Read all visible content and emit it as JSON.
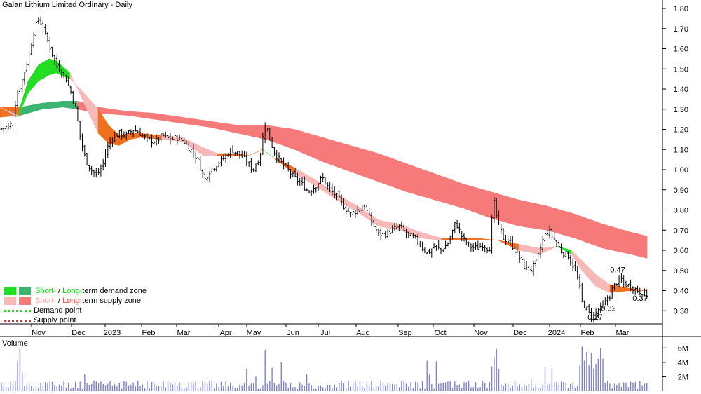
{
  "title": "Galan Lithium Limited Ordinary - Daily",
  "volume_panel_label": "Volume",
  "legend": {
    "zone_demand": {
      "short": "Short-",
      "sep": " / ",
      "long": "Long-",
      "rest": "term demand zone"
    },
    "zone_supply": {
      "short": "Short-",
      "sep": " / ",
      "long": "Long-",
      "rest": "term supply zone"
    },
    "demand_point": "Demand point",
    "supply_point": "Supply point"
  },
  "colors": {
    "short_demand": "#22dd22",
    "long_demand": "#3cb371",
    "short_supply": "#f7b8b8",
    "long_supply": "#f77a7a",
    "transition": "#f07020",
    "candle": "#000000",
    "volume": "#8080cc"
  },
  "chart_data": {
    "type": "candlestick",
    "title": "Galan Lithium Limited Ordinary - Daily",
    "x_tick_labels": [
      "Nov",
      "Dec",
      "2023",
      "Feb",
      "Mar",
      "Apr",
      "May",
      "Jun",
      "Jul",
      "Aug",
      "Sep",
      "Oct",
      "Nov",
      "Dec",
      "2024",
      "Feb",
      "Mar"
    ],
    "y_ticks": [
      "1.80",
      "1.70",
      "1.60",
      "1.50",
      "1.40",
      "1.30",
      "1.20",
      "1.10",
      "1.00",
      "0.90",
      "0.80",
      "0.70",
      "0.60",
      "0.50",
      "0.40",
      "0.30"
    ],
    "ylim": [
      0.27,
      1.83
    ],
    "volume_ticks": [
      "6M",
      "4M",
      "2M"
    ],
    "annotations": [
      "0.27",
      "0.32",
      "0.47",
      "0.37"
    ],
    "close_path": [
      [
        0,
        1.2
      ],
      [
        15,
        1.22
      ],
      [
        25,
        1.38
      ],
      [
        32,
        1.45
      ],
      [
        40,
        1.55
      ],
      [
        48,
        1.68
      ],
      [
        55,
        1.75
      ],
      [
        62,
        1.7
      ],
      [
        70,
        1.62
      ],
      [
        80,
        1.52
      ],
      [
        90,
        1.48
      ],
      [
        100,
        1.4
      ],
      [
        108,
        1.3
      ],
      [
        115,
        1.15
      ],
      [
        122,
        1.05
      ],
      [
        130,
        1.0
      ],
      [
        138,
        0.97
      ],
      [
        146,
        1.02
      ],
      [
        152,
        1.1
      ],
      [
        160,
        1.16
      ],
      [
        170,
        1.18
      ],
      [
        180,
        1.17
      ],
      [
        190,
        1.2
      ],
      [
        200,
        1.18
      ],
      [
        210,
        1.15
      ],
      [
        222,
        1.14
      ],
      [
        232,
        1.17
      ],
      [
        242,
        1.15
      ],
      [
        252,
        1.16
      ],
      [
        262,
        1.14
      ],
      [
        272,
        1.1
      ],
      [
        282,
        1.05
      ],
      [
        292,
        0.95
      ],
      [
        300,
        1.0
      ],
      [
        310,
        1.03
      ],
      [
        320,
        1.06
      ],
      [
        330,
        1.1
      ],
      [
        340,
        1.08
      ],
      [
        350,
        1.05
      ],
      [
        360,
        1.0
      ],
      [
        370,
        1.05
      ],
      [
        378,
        1.23
      ],
      [
        385,
        1.15
      ],
      [
        392,
        1.08
      ],
      [
        400,
        1.04
      ],
      [
        410,
        1.0
      ],
      [
        420,
        0.96
      ],
      [
        430,
        0.93
      ],
      [
        440,
        0.89
      ],
      [
        450,
        0.92
      ],
      [
        460,
        0.96
      ],
      [
        470,
        0.9
      ],
      [
        480,
        0.87
      ],
      [
        490,
        0.82
      ],
      [
        500,
        0.78
      ],
      [
        510,
        0.8
      ],
      [
        520,
        0.82
      ],
      [
        530,
        0.74
      ],
      [
        540,
        0.68
      ],
      [
        550,
        0.68
      ],
      [
        560,
        0.7
      ],
      [
        570,
        0.72
      ],
      [
        580,
        0.68
      ],
      [
        590,
        0.66
      ],
      [
        600,
        0.63
      ],
      [
        610,
        0.58
      ],
      [
        620,
        0.62
      ],
      [
        630,
        0.6
      ],
      [
        640,
        0.64
      ],
      [
        650,
        0.74
      ],
      [
        660,
        0.66
      ],
      [
        670,
        0.62
      ],
      [
        680,
        0.61
      ],
      [
        690,
        0.63
      ],
      [
        698,
        0.6
      ],
      [
        704,
        0.85
      ],
      [
        710,
        0.74
      ],
      [
        718,
        0.66
      ],
      [
        728,
        0.64
      ],
      [
        738,
        0.58
      ],
      [
        748,
        0.52
      ],
      [
        756,
        0.5
      ],
      [
        765,
        0.54
      ],
      [
        775,
        0.66
      ],
      [
        782,
        0.7
      ],
      [
        790,
        0.66
      ],
      [
        800,
        0.6
      ],
      [
        810,
        0.57
      ],
      [
        818,
        0.52
      ],
      [
        825,
        0.45
      ],
      [
        830,
        0.35
      ],
      [
        838,
        0.3
      ],
      [
        845,
        0.27
      ],
      [
        855,
        0.31
      ],
      [
        862,
        0.33
      ],
      [
        870,
        0.38
      ],
      [
        878,
        0.44
      ],
      [
        885,
        0.45
      ],
      [
        892,
        0.43
      ],
      [
        900,
        0.42
      ],
      [
        910,
        0.4
      ],
      [
        918,
        0.39
      ],
      [
        923,
        0.38
      ]
    ],
    "short_zone": [
      [
        0,
        1.31,
        1.31
      ],
      [
        25,
        1.26,
        1.27
      ],
      [
        40,
        1.38,
        1.44
      ],
      [
        55,
        1.44,
        1.52
      ],
      [
        70,
        1.47,
        1.55
      ],
      [
        80,
        1.48,
        1.54
      ],
      [
        100,
        1.45,
        1.48
      ],
      [
        120,
        1.38,
        1.33
      ],
      [
        140,
        1.3,
        1.18
      ],
      [
        155,
        1.22,
        1.13
      ],
      [
        170,
        1.17,
        1.12
      ],
      [
        185,
        1.18,
        1.15
      ],
      [
        200,
        1.18,
        1.16
      ],
      [
        230,
        1.17,
        1.15
      ],
      [
        260,
        1.16,
        1.14
      ],
      [
        290,
        1.11,
        1.07
      ],
      [
        310,
        1.08,
        1.07
      ],
      [
        330,
        1.08,
        1.07
      ],
      [
        355,
        1.07,
        1.07
      ],
      [
        375,
        1.1,
        1.1
      ],
      [
        390,
        1.06,
        1.06
      ],
      [
        420,
        1.01,
        0.98
      ],
      [
        450,
        0.95,
        0.92
      ],
      [
        480,
        0.88,
        0.85
      ],
      [
        510,
        0.82,
        0.79
      ],
      [
        540,
        0.75,
        0.72
      ],
      [
        570,
        0.73,
        0.7
      ],
      [
        600,
        0.69,
        0.66
      ],
      [
        630,
        0.66,
        0.65
      ],
      [
        650,
        0.66,
        0.65
      ],
      [
        680,
        0.66,
        0.65
      ],
      [
        710,
        0.65,
        0.65
      ],
      [
        740,
        0.63,
        0.6
      ],
      [
        770,
        0.61,
        0.58
      ],
      [
        795,
        0.62,
        0.62
      ],
      [
        815,
        0.6,
        0.58
      ],
      [
        830,
        0.55,
        0.5
      ],
      [
        850,
        0.48,
        0.42
      ],
      [
        870,
        0.43,
        0.39
      ],
      [
        900,
        0.41,
        0.4
      ],
      [
        923,
        0.4,
        0.4
      ]
    ],
    "long_zone": [
      [
        0,
        1.31,
        1.26
      ],
      [
        30,
        1.31,
        1.27
      ],
      [
        60,
        1.33,
        1.3
      ],
      [
        90,
        1.34,
        1.31
      ],
      [
        110,
        1.34,
        1.3
      ],
      [
        140,
        1.31,
        1.28
      ],
      [
        180,
        1.29,
        1.27
      ],
      [
        220,
        1.28,
        1.25
      ],
      [
        260,
        1.26,
        1.23
      ],
      [
        300,
        1.24,
        1.21
      ],
      [
        340,
        1.22,
        1.18
      ],
      [
        380,
        1.22,
        1.15
      ],
      [
        420,
        1.2,
        1.1
      ],
      [
        460,
        1.16,
        1.04
      ],
      [
        500,
        1.12,
        0.99
      ],
      [
        540,
        1.08,
        0.94
      ],
      [
        580,
        1.03,
        0.89
      ],
      [
        620,
        0.98,
        0.85
      ],
      [
        660,
        0.93,
        0.81
      ],
      [
        700,
        0.89,
        0.76
      ],
      [
        740,
        0.85,
        0.72
      ],
      [
        780,
        0.82,
        0.7
      ],
      [
        820,
        0.78,
        0.66
      ],
      [
        860,
        0.73,
        0.61
      ],
      [
        900,
        0.69,
        0.58
      ],
      [
        923,
        0.67,
        0.56
      ]
    ]
  }
}
